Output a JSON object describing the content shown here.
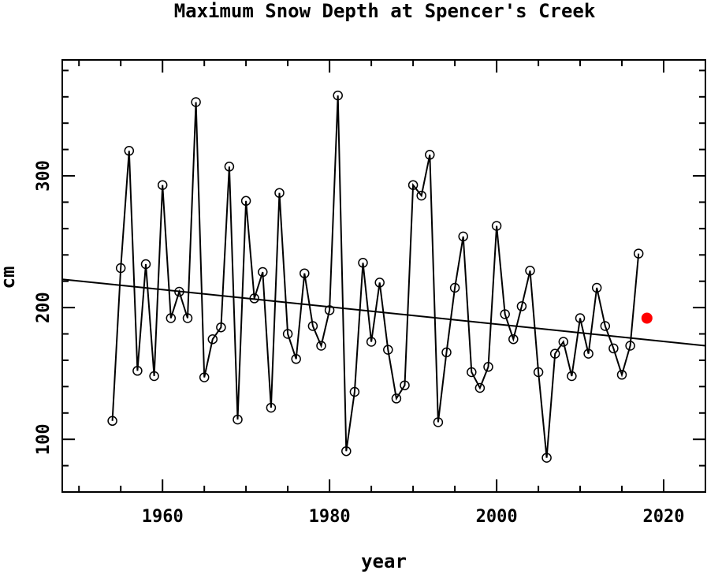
{
  "chart_data": {
    "type": "scatter",
    "title": "Maximum Snow Depth at Spencer's Creek",
    "xlabel": "year",
    "ylabel": "cm",
    "xlim": [
      1948,
      2025
    ],
    "ylim": [
      60,
      388
    ],
    "xticks": [
      1960,
      1980,
      2000,
      2020
    ],
    "yticks": [
      100,
      200,
      300
    ],
    "grid": false,
    "series": [
      {
        "style": "line-with-open-circles",
        "color": "#000000",
        "x": [
          1954,
          1955,
          1956,
          1957,
          1958,
          1959,
          1960,
          1961,
          1962,
          1963,
          1964,
          1965,
          1966,
          1967,
          1968,
          1969,
          1970,
          1971,
          1972,
          1973,
          1974,
          1975,
          1976,
          1977,
          1978,
          1979,
          1980,
          1981,
          1982,
          1983,
          1984,
          1985,
          1986,
          1987,
          1988,
          1989,
          1990,
          1991,
          1992,
          1993,
          1994,
          1995,
          1996,
          1997,
          1998,
          1999,
          2000,
          2001,
          2002,
          2003,
          2004,
          2005,
          2006,
          2007,
          2008,
          2009,
          2010,
          2011,
          2012,
          2013,
          2014,
          2015,
          2016,
          2017
        ],
        "y": [
          114,
          230,
          319,
          152,
          233,
          148,
          293,
          192,
          212,
          192,
          356,
          147,
          176,
          185,
          307,
          115,
          281,
          207,
          227,
          124,
          287,
          180,
          161,
          226,
          186,
          171,
          198,
          361,
          91,
          136,
          234,
          174,
          219,
          168,
          131,
          141,
          293,
          285,
          316,
          113,
          166,
          215,
          254,
          151,
          139,
          155,
          262,
          195,
          176,
          201,
          228,
          151,
          86,
          165,
          174,
          148,
          192,
          165,
          215,
          186,
          169,
          149,
          171,
          241
        ]
      },
      {
        "style": "filled-point",
        "color": "#ff0000",
        "x": [
          2018
        ],
        "y": [
          192
        ]
      },
      {
        "style": "trend-line",
        "color": "#000000",
        "x": [
          1948,
          2025
        ],
        "y": [
          221.5,
          171
        ]
      }
    ]
  }
}
